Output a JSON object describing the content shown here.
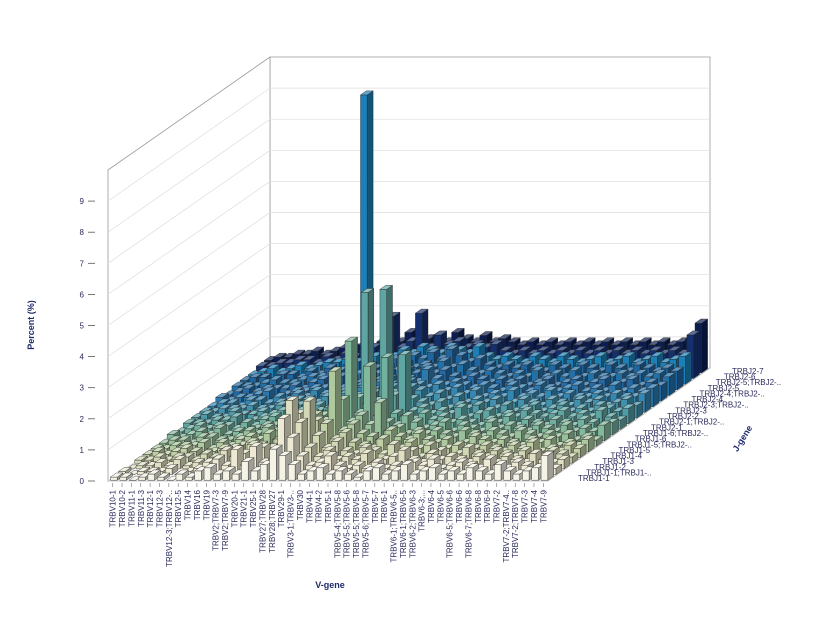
{
  "chart_data": {
    "type": "bar3d",
    "xlabel": "V-gene",
    "ylabel": "J-gene",
    "zlabel": "Percent (%)",
    "zlim": [
      0,
      10
    ],
    "zticks": [
      0,
      1,
      2,
      3,
      4,
      5,
      6,
      7,
      8,
      9
    ],
    "grid": true,
    "categories": [
      "TRBV10-1",
      "TRBV10-2",
      "TRBV11-1",
      "TRBV11-3",
      "TRBV12-1",
      "TRBV12-3",
      "TRBV12-3;TRBV12-..",
      "TRBV12-5",
      "TRBV14",
      "TRBV16",
      "TRBV19",
      "TRBV2;TRBV7-3",
      "TRBV2;TRBV7-9",
      "TRBV20-1",
      "TRBV21-1",
      "TRBV25-1",
      "TRBV27;TRBV28",
      "TRBV28;TRBV27",
      "TRBV29-1",
      "TRBV3-1;TRBV3-..",
      "TRBV30",
      "TRBV4-1",
      "TRBV4-2",
      "TRBV5-1",
      "TRBV5-4;TRBV5-8",
      "TRBV5-5;TRBV5-6",
      "TRBV5-5;TRBV5-8",
      "TRBV5-6;TRBV5-7",
      "TRBV5-7",
      "TRBV6-1",
      "TRBV6-1;TRBV6-5..",
      "TRBV6-1;TRBV6-5",
      "TRBV6-2;TRBV6-3",
      "TRBV6-3;...",
      "TRBV6-4",
      "TRBV6-5",
      "TRBV6-5;TRBV6-6",
      "TRBV6-6",
      "TRBV6-7;TRBV6-8",
      "TRBV6-8",
      "TRBV6-9",
      "TRBV7-2",
      "TRBV7-2;TRBV7-4..",
      "TRBV7-2;TRBV7-8",
      "TRBV7-3",
      "TRBV7-4",
      "TRBV7-9"
    ],
    "series": [
      {
        "name": "TRBJ1-1",
        "color": "#f5f3e6",
        "values": [
          0.1,
          0.1,
          0,
          0.1,
          0.2,
          0.1,
          0,
          0.2,
          0.1,
          0.3,
          0.4,
          0.2,
          0.3,
          0.2,
          0.6,
          0.3,
          0.5,
          1.0,
          0.8,
          0.5,
          0.2,
          0.3,
          0.4,
          0.2,
          0.3,
          0.2,
          0.1,
          0.3,
          0.4,
          0.2,
          0.3,
          0.5,
          0.2,
          0.3,
          0.4,
          0.2,
          0.3,
          0.2,
          0.4,
          0.3,
          0.2,
          0.5,
          0.3,
          0.2,
          0.3,
          0.4,
          0.8
        ]
      },
      {
        "name": "TRBJ1-1;TRBJ1-..",
        "color": "#ede9d3",
        "values": [
          0.1,
          0,
          0.1,
          0.1,
          0.1,
          0.2,
          0,
          0.1,
          0.2,
          0.4,
          0.5,
          0.3,
          0.8,
          0.3,
          0.9,
          0.4,
          0.5,
          1.8,
          1.2,
          0.6,
          0.3,
          0.4,
          0.6,
          0.3,
          0.2,
          0.3,
          0.2,
          0.4,
          0.2,
          0.3,
          0.2,
          0.4,
          0.3,
          0.5,
          0.2,
          0.3,
          0.4,
          0.3,
          0.2,
          0.5,
          0.3,
          0.2,
          0.4,
          0.3,
          0.2,
          0.3,
          0.2
        ]
      },
      {
        "name": "TRBJ1-2",
        "color": "#e1dfc2",
        "values": [
          0,
          0.1,
          0.1,
          0.2,
          0.1,
          0.3,
          0.1,
          0.2,
          0.1,
          0.3,
          0.6,
          0.4,
          0.5,
          0.2,
          0.7,
          0.3,
          0.8,
          2.2,
          1.5,
          0.7,
          0.4,
          0.6,
          0.3,
          0.4,
          0.3,
          0.5,
          0.2,
          0.3,
          0.4,
          0.6,
          0.3,
          0.2,
          0.5,
          0.3,
          0.4,
          0.3,
          0.2,
          0.4,
          0.3,
          0.2,
          0.4,
          0.3,
          0.2,
          0.5,
          0.3,
          0.2,
          0.3
        ]
      },
      {
        "name": "TRBJ1-3",
        "color": "#d3d8b4",
        "values": [
          0.1,
          0.1,
          0.2,
          0.1,
          0.2,
          0.2,
          0.1,
          0.3,
          0.2,
          0.4,
          0.5,
          0.3,
          0.6,
          0.3,
          0.5,
          0.4,
          0.6,
          1.6,
          2.0,
          0.9,
          0.5,
          0.7,
          0.4,
          0.3,
          0.5,
          0.4,
          0.3,
          0.6,
          0.3,
          0.4,
          0.2,
          0.3,
          0.4,
          0.2,
          0.3,
          0.5,
          0.3,
          0.2,
          0.4,
          0.3,
          0.2,
          0.4,
          0.3,
          0.2,
          0.4,
          0.3,
          0.2
        ]
      },
      {
        "name": "TRBJ1-4",
        "color": "#c2d0a6",
        "values": [
          0.1,
          0.2,
          0.1,
          0.2,
          0.3,
          0.2,
          0.1,
          0.2,
          0.3,
          0.3,
          0.4,
          0.5,
          0.4,
          0.3,
          0.6,
          0.5,
          0.7,
          1.4,
          1.2,
          1.1,
          0.6,
          0.8,
          0.5,
          0.4,
          0.3,
          0.6,
          0.4,
          0.3,
          0.5,
          0.3,
          0.4,
          0.2,
          0.3,
          0.4,
          0.2,
          0.3,
          0.4,
          0.3,
          0.2,
          0.4,
          0.3,
          0.5,
          0.2,
          0.3,
          0.2,
          0.4,
          0.3
        ]
      },
      {
        "name": "TRBJ1-5",
        "color": "#aec99e",
        "values": [
          0.1,
          0.1,
          0.2,
          0.2,
          0.2,
          0.3,
          0.1,
          0.3,
          0.2,
          0.4,
          0.5,
          0.4,
          0.6,
          0.4,
          0.5,
          0.6,
          0.8,
          1.2,
          1.0,
          2.6,
          0.7,
          0.9,
          0.6,
          0.5,
          0.4,
          0.7,
          0.5,
          0.4,
          0.6,
          0.4,
          0.3,
          0.4,
          0.2,
          0.3,
          0.5,
          0.4,
          0.3,
          0.4,
          0.3,
          0.2,
          0.4,
          0.3,
          0.4,
          0.2,
          0.3,
          0.2,
          0.4
        ]
      },
      {
        "name": "TRBJ1-5;TRBJ2-..",
        "color": "#97c09b",
        "values": [
          0.1,
          0.2,
          0.2,
          0.1,
          0.3,
          0.3,
          0.2,
          0.2,
          0.3,
          0.5,
          0.4,
          0.6,
          0.5,
          0.4,
          0.6,
          0.5,
          0.9,
          1.0,
          1.3,
          1.5,
          0.8,
          1.0,
          0.7,
          1.4,
          0.5,
          0.6,
          0.4,
          0.5,
          0.4,
          0.5,
          0.4,
          0.3,
          0.5,
          0.4,
          0.3,
          0.5,
          0.4,
          0.3,
          0.5,
          0.4,
          0.3,
          0.4,
          0.3,
          0.4,
          0.2,
          0.3,
          0.2
        ]
      },
      {
        "name": "TRBJ1-6",
        "color": "#82b89c",
        "values": [
          0.2,
          0.1,
          0.2,
          0.3,
          0.2,
          0.4,
          0.2,
          0.3,
          0.2,
          0.4,
          0.5,
          0.5,
          0.7,
          0.5,
          0.5,
          0.6,
          0.7,
          0.9,
          1.1,
          3.2,
          0.9,
          2.4,
          0.8,
          0.6,
          0.5,
          0.8,
          0.6,
          0.4,
          0.5,
          0.6,
          0.3,
          0.5,
          0.4,
          0.3,
          0.6,
          0.4,
          0.5,
          0.4,
          0.3,
          0.5,
          0.4,
          0.3,
          0.5,
          0.3,
          0.4,
          0.3,
          0.5
        ]
      },
      {
        "name": "TRBJ1-6;TRBJ2-..",
        "color": "#6fb09f",
        "values": [
          0.1,
          0.2,
          0.3,
          0.2,
          0.3,
          0.3,
          0.2,
          0.4,
          0.3,
          0.5,
          0.6,
          0.4,
          0.5,
          0.6,
          0.7,
          0.5,
          0.8,
          1.0,
          0.9,
          1.2,
          1.0,
          1.1,
          2.5,
          0.7,
          0.6,
          0.5,
          0.7,
          0.5,
          0.6,
          0.4,
          0.5,
          0.4,
          0.3,
          0.5,
          0.4,
          0.6,
          0.3,
          0.5,
          0.4,
          0.3,
          0.5,
          0.4,
          0.3,
          0.5,
          0.4,
          0.3,
          0.4
        ]
      },
      {
        "name": "TRBJ2-1",
        "color": "#5fa6a3",
        "values": [
          0.2,
          0.2,
          0.2,
          0.3,
          0.3,
          0.4,
          0.2,
          0.3,
          0.4,
          0.5,
          0.6,
          0.7,
          0.6,
          0.5,
          0.6,
          0.7,
          0.6,
          0.8,
          1.0,
          4.4,
          0.9,
          4.5,
          1.1,
          2.4,
          0.6,
          0.7,
          0.5,
          0.6,
          0.5,
          0.7,
          0.4,
          0.5,
          0.6,
          0.4,
          0.5,
          0.4,
          0.6,
          0.5,
          0.4,
          0.5,
          0.6,
          0.4,
          0.5,
          0.4,
          0.6,
          0.4,
          0.3
        ]
      },
      {
        "name": "TRBJ2-1;TRBJ2-..",
        "color": "#4f9ca8",
        "values": [
          0.2,
          0.3,
          0.2,
          0.2,
          0.4,
          0.3,
          0.3,
          0.4,
          0.3,
          0.6,
          0.5,
          0.6,
          0.7,
          0.6,
          0.5,
          0.6,
          0.7,
          0.9,
          0.8,
          1.0,
          1.1,
          1.0,
          2.2,
          0.8,
          0.7,
          0.6,
          0.7,
          0.5,
          0.6,
          0.5,
          0.6,
          0.4,
          0.5,
          0.6,
          0.4,
          0.5,
          0.6,
          0.4,
          0.5,
          0.6,
          0.4,
          0.5,
          0.4,
          0.6,
          0.5,
          0.4,
          0.5
        ]
      },
      {
        "name": "TRBJ2-2",
        "color": "#4191ae",
        "values": [
          0.2,
          0.2,
          0.3,
          0.3,
          0.3,
          0.4,
          0.3,
          0.3,
          0.5,
          0.5,
          0.6,
          0.6,
          0.5,
          0.7,
          0.6,
          0.8,
          0.6,
          0.7,
          0.9,
          0.8,
          1.0,
          0.9,
          1.0,
          0.9,
          0.7,
          0.8,
          0.6,
          0.7,
          0.5,
          0.6,
          0.5,
          0.6,
          0.4,
          0.5,
          0.6,
          0.5,
          0.4,
          0.6,
          0.5,
          0.4,
          0.6,
          0.5,
          0.6,
          0.4,
          0.5,
          0.6,
          0.4
        ]
      },
      {
        "name": "TRBJ2-3",
        "color": "#3486b3",
        "values": [
          0.2,
          0.3,
          0.3,
          0.2,
          0.4,
          0.4,
          0.3,
          0.5,
          0.4,
          0.6,
          0.5,
          0.7,
          0.6,
          0.6,
          0.7,
          0.6,
          0.8,
          0.7,
          0.8,
          0.9,
          0.8,
          1.0,
          0.9,
          0.8,
          0.9,
          0.7,
          0.8,
          0.6,
          0.7,
          0.5,
          0.6,
          0.5,
          0.7,
          0.5,
          0.6,
          0.5,
          0.7,
          0.5,
          0.6,
          0.5,
          0.5,
          0.6,
          0.5,
          0.6,
          0.5,
          0.5,
          0.6
        ]
      },
      {
        "name": "TRBJ2-3;TRBJ2-..",
        "color": "#2a79b1",
        "values": [
          0.3,
          0.2,
          0.3,
          0.3,
          0.4,
          0.5,
          0.3,
          0.4,
          0.5,
          0.5,
          0.6,
          0.6,
          0.7,
          0.6,
          0.6,
          0.7,
          0.7,
          0.8,
          0.9,
          0.8,
          0.9,
          0.8,
          1.2,
          0.9,
          0.7,
          0.8,
          0.7,
          0.6,
          0.7,
          0.6,
          0.5,
          0.7,
          0.6,
          0.5,
          0.7,
          0.6,
          0.5,
          0.6,
          0.7,
          0.5,
          0.6,
          0.5,
          0.7,
          0.5,
          0.6,
          0.5,
          0.6
        ]
      },
      {
        "name": "TRBJ2-4",
        "color": "#236aa6",
        "values": [
          0.2,
          0.3,
          0.4,
          0.3,
          0.4,
          0.4,
          0.4,
          0.5,
          0.4,
          0.6,
          0.7,
          0.6,
          0.8,
          0.7,
          0.6,
          0.8,
          0.7,
          0.9,
          0.8,
          1.0,
          0.9,
          1.1,
          0.9,
          1.0,
          0.8,
          0.7,
          0.8,
          0.7,
          0.6,
          0.7,
          0.6,
          0.7,
          0.5,
          0.6,
          0.7,
          0.5,
          0.6,
          0.7,
          0.5,
          0.6,
          0.7,
          0.5,
          0.6,
          0.7,
          0.5,
          0.6,
          0.5
        ]
      },
      {
        "name": "TRBJ2-4;TRBJ2-..",
        "color": "#2270a8",
        "values": [
          0.3,
          0.3,
          0.3,
          0.4,
          0.5,
          0.4,
          0.4,
          0.5,
          0.6,
          0.6,
          0.7,
          0.8,
          0.7,
          0.7,
          0.8,
          0.7,
          0.9,
          0.8,
          1.0,
          0.9,
          1.0,
          0.9,
          1.1,
          0.9,
          1.0,
          0.8,
          0.7,
          0.8,
          0.7,
          0.6,
          0.7,
          0.6,
          0.8,
          0.6,
          0.7,
          0.6,
          0.8,
          0.6,
          0.7,
          0.6,
          0.6,
          0.7,
          0.6,
          0.7,
          0.6,
          0.7,
          0.6
        ]
      },
      {
        "name": "TRBJ2-5",
        "color": "#1f66a0",
        "values": [
          0.3,
          0.4,
          0.4,
          0.3,
          0.5,
          0.5,
          0.4,
          0.6,
          0.5,
          0.7,
          0.6,
          0.8,
          0.9,
          0.8,
          0.7,
          0.9,
          1.0,
          0.9,
          1.1,
          1.0,
          1.2,
          1.0,
          1.3,
          1.1,
          0.9,
          1.0,
          0.8,
          0.7,
          0.8,
          0.7,
          0.8,
          0.7,
          0.6,
          0.8,
          0.7,
          0.6,
          0.8,
          0.7,
          0.6,
          0.8,
          0.7,
          0.6,
          0.8,
          0.7,
          0.6,
          0.7,
          0.6
        ]
      },
      {
        "name": "TRBJ2-5;TRBJ2-..",
        "color": "#1c7fb5",
        "values": [
          0.3,
          0.4,
          0.5,
          0.4,
          0.5,
          0.6,
          0.5,
          0.6,
          0.7,
          0.7,
          0.8,
          0.7,
          9.3,
          0.9,
          1.0,
          0.9,
          1.1,
          1.0,
          1.2,
          1.1,
          1.0,
          1.2,
          1.1,
          1.0,
          1.2,
          0.9,
          0.8,
          0.9,
          0.8,
          0.7,
          0.9,
          0.8,
          0.7,
          0.9,
          0.8,
          0.7,
          0.8,
          0.9,
          0.7,
          0.8,
          0.9,
          0.7,
          0.8,
          0.9,
          0.7,
          0.8,
          0.9
        ]
      },
      {
        "name": "TRBJ2-6",
        "color": "#15306e",
        "values": [
          0.4,
          0.4,
          0.5,
          0.5,
          0.6,
          0.6,
          0.5,
          0.7,
          0.6,
          0.8,
          0.7,
          0.9,
          1.0,
          0.9,
          2.0,
          1.0,
          1.2,
          2.1,
          1.0,
          1.4,
          1.1,
          1.2,
          1.0,
          1.1,
          1.0,
          1.1,
          0.9,
          0.8,
          0.9,
          0.8,
          0.9,
          0.8,
          0.9,
          0.8,
          0.9,
          0.8,
          0.9,
          0.8,
          0.9,
          0.8,
          0.9,
          0.8,
          0.9,
          0.8,
          0.9,
          0.8,
          1.4
        ]
      },
      {
        "name": "TRBJ2-7",
        "color": "#0b1d51",
        "values": [
          0.4,
          0.5,
          0.5,
          0.6,
          0.6,
          0.7,
          0.6,
          0.7,
          0.8,
          0.8,
          0.9,
          0.8,
          1.0,
          1.1,
          1.0,
          1.3,
          1.0,
          1.1,
          1.2,
          1.0,
          1.3,
          1.1,
          1.0,
          1.2,
          1.0,
          1.1,
          1.0,
          0.9,
          1.0,
          0.9,
          1.0,
          0.9,
          1.0,
          0.9,
          1.0,
          0.9,
          1.0,
          0.9,
          1.0,
          0.9,
          1.0,
          0.9,
          1.0,
          0.9,
          1.0,
          1.1,
          1.6
        ]
      }
    ]
  }
}
